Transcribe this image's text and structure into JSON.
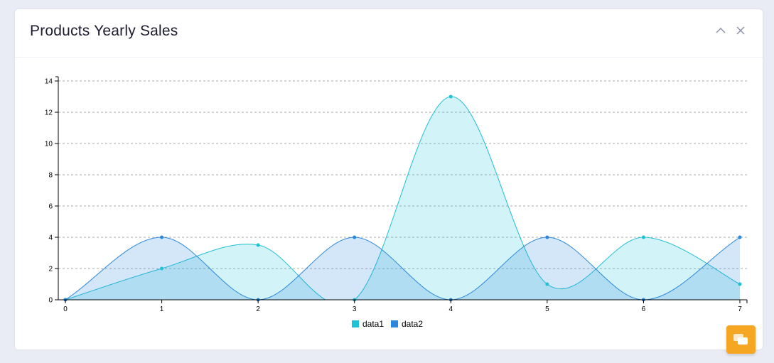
{
  "card": {
    "title": "Products Yearly Sales"
  },
  "icons": {
    "collapse": "chevron-up-icon",
    "close": "close-icon",
    "fab": "chat-icon"
  },
  "colors": {
    "data1": "#1fc1d6",
    "data2": "#2a87dc",
    "fab": "#f5a623"
  },
  "chart_data": {
    "type": "area",
    "x": [
      0,
      1,
      2,
      3,
      4,
      5,
      6,
      7
    ],
    "series": [
      {
        "name": "data1",
        "values": [
          0,
          2,
          3.5,
          0,
          13,
          1,
          4,
          1
        ]
      },
      {
        "name": "data2",
        "values": [
          0,
          4,
          0,
          4,
          0,
          4,
          0,
          4
        ]
      }
    ],
    "xticks": [
      "0",
      "1",
      "2",
      "3",
      "4",
      "5",
      "6",
      "7"
    ],
    "yticks": [
      "0",
      "2",
      "4",
      "6",
      "8",
      "10",
      "12",
      "14"
    ],
    "xlim": [
      0,
      7
    ],
    "ylim": [
      0,
      14
    ],
    "grid": "horizontal-dashed",
    "legend": "bottom-center"
  }
}
